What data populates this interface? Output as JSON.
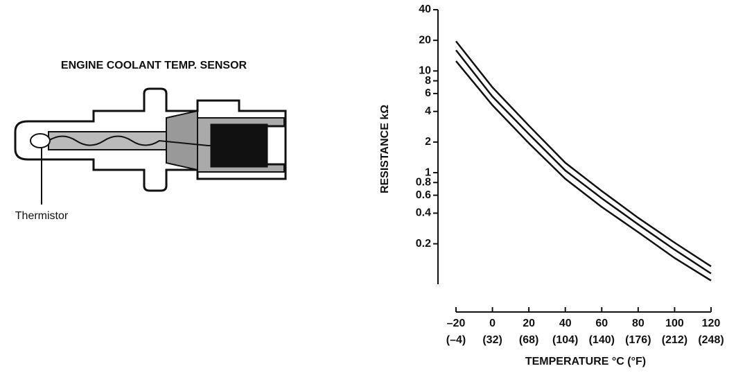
{
  "diagram": {
    "title": "ENGINE COOLANT TEMP. SENSOR",
    "label": "Thermistor"
  },
  "chart_data": {
    "type": "line",
    "x_label": "TEMPERATURE °C (°F)",
    "y_label": "RESISTANCE kΩ",
    "log_y": true,
    "x": [
      -20,
      0,
      20,
      40,
      60,
      80,
      100,
      120
    ],
    "series": [
      {
        "color": "#111111",
        "values": [
          19.6,
          6.9,
          2.9,
          1.25,
          0.66,
          0.36,
          0.205,
          0.12
        ]
      },
      {
        "color": "#111111",
        "values": [
          16,
          5.6,
          2.4,
          1.05,
          0.56,
          0.31,
          0.175,
          0.102
        ]
      },
      {
        "color": "#111111",
        "values": [
          12.5,
          4.6,
          1.95,
          0.87,
          0.46,
          0.26,
          0.145,
          0.087
        ]
      }
    ],
    "xlim": [
      -20,
      120
    ],
    "xticks": [
      {
        "value": -20,
        "label": "–20"
      },
      0,
      20,
      40,
      60,
      80,
      100,
      120
    ],
    "xtick_sublabels": [
      "(–4)",
      "(32)",
      "(68)",
      "(104)",
      "(140)",
      "(176)",
      "(212)",
      "(248)"
    ],
    "ylim": [
      0.08,
      40
    ],
    "yticks": [
      40,
      20,
      10,
      8,
      6,
      4,
      2,
      1,
      0.8,
      0.6,
      0.4,
      0.2
    ]
  }
}
